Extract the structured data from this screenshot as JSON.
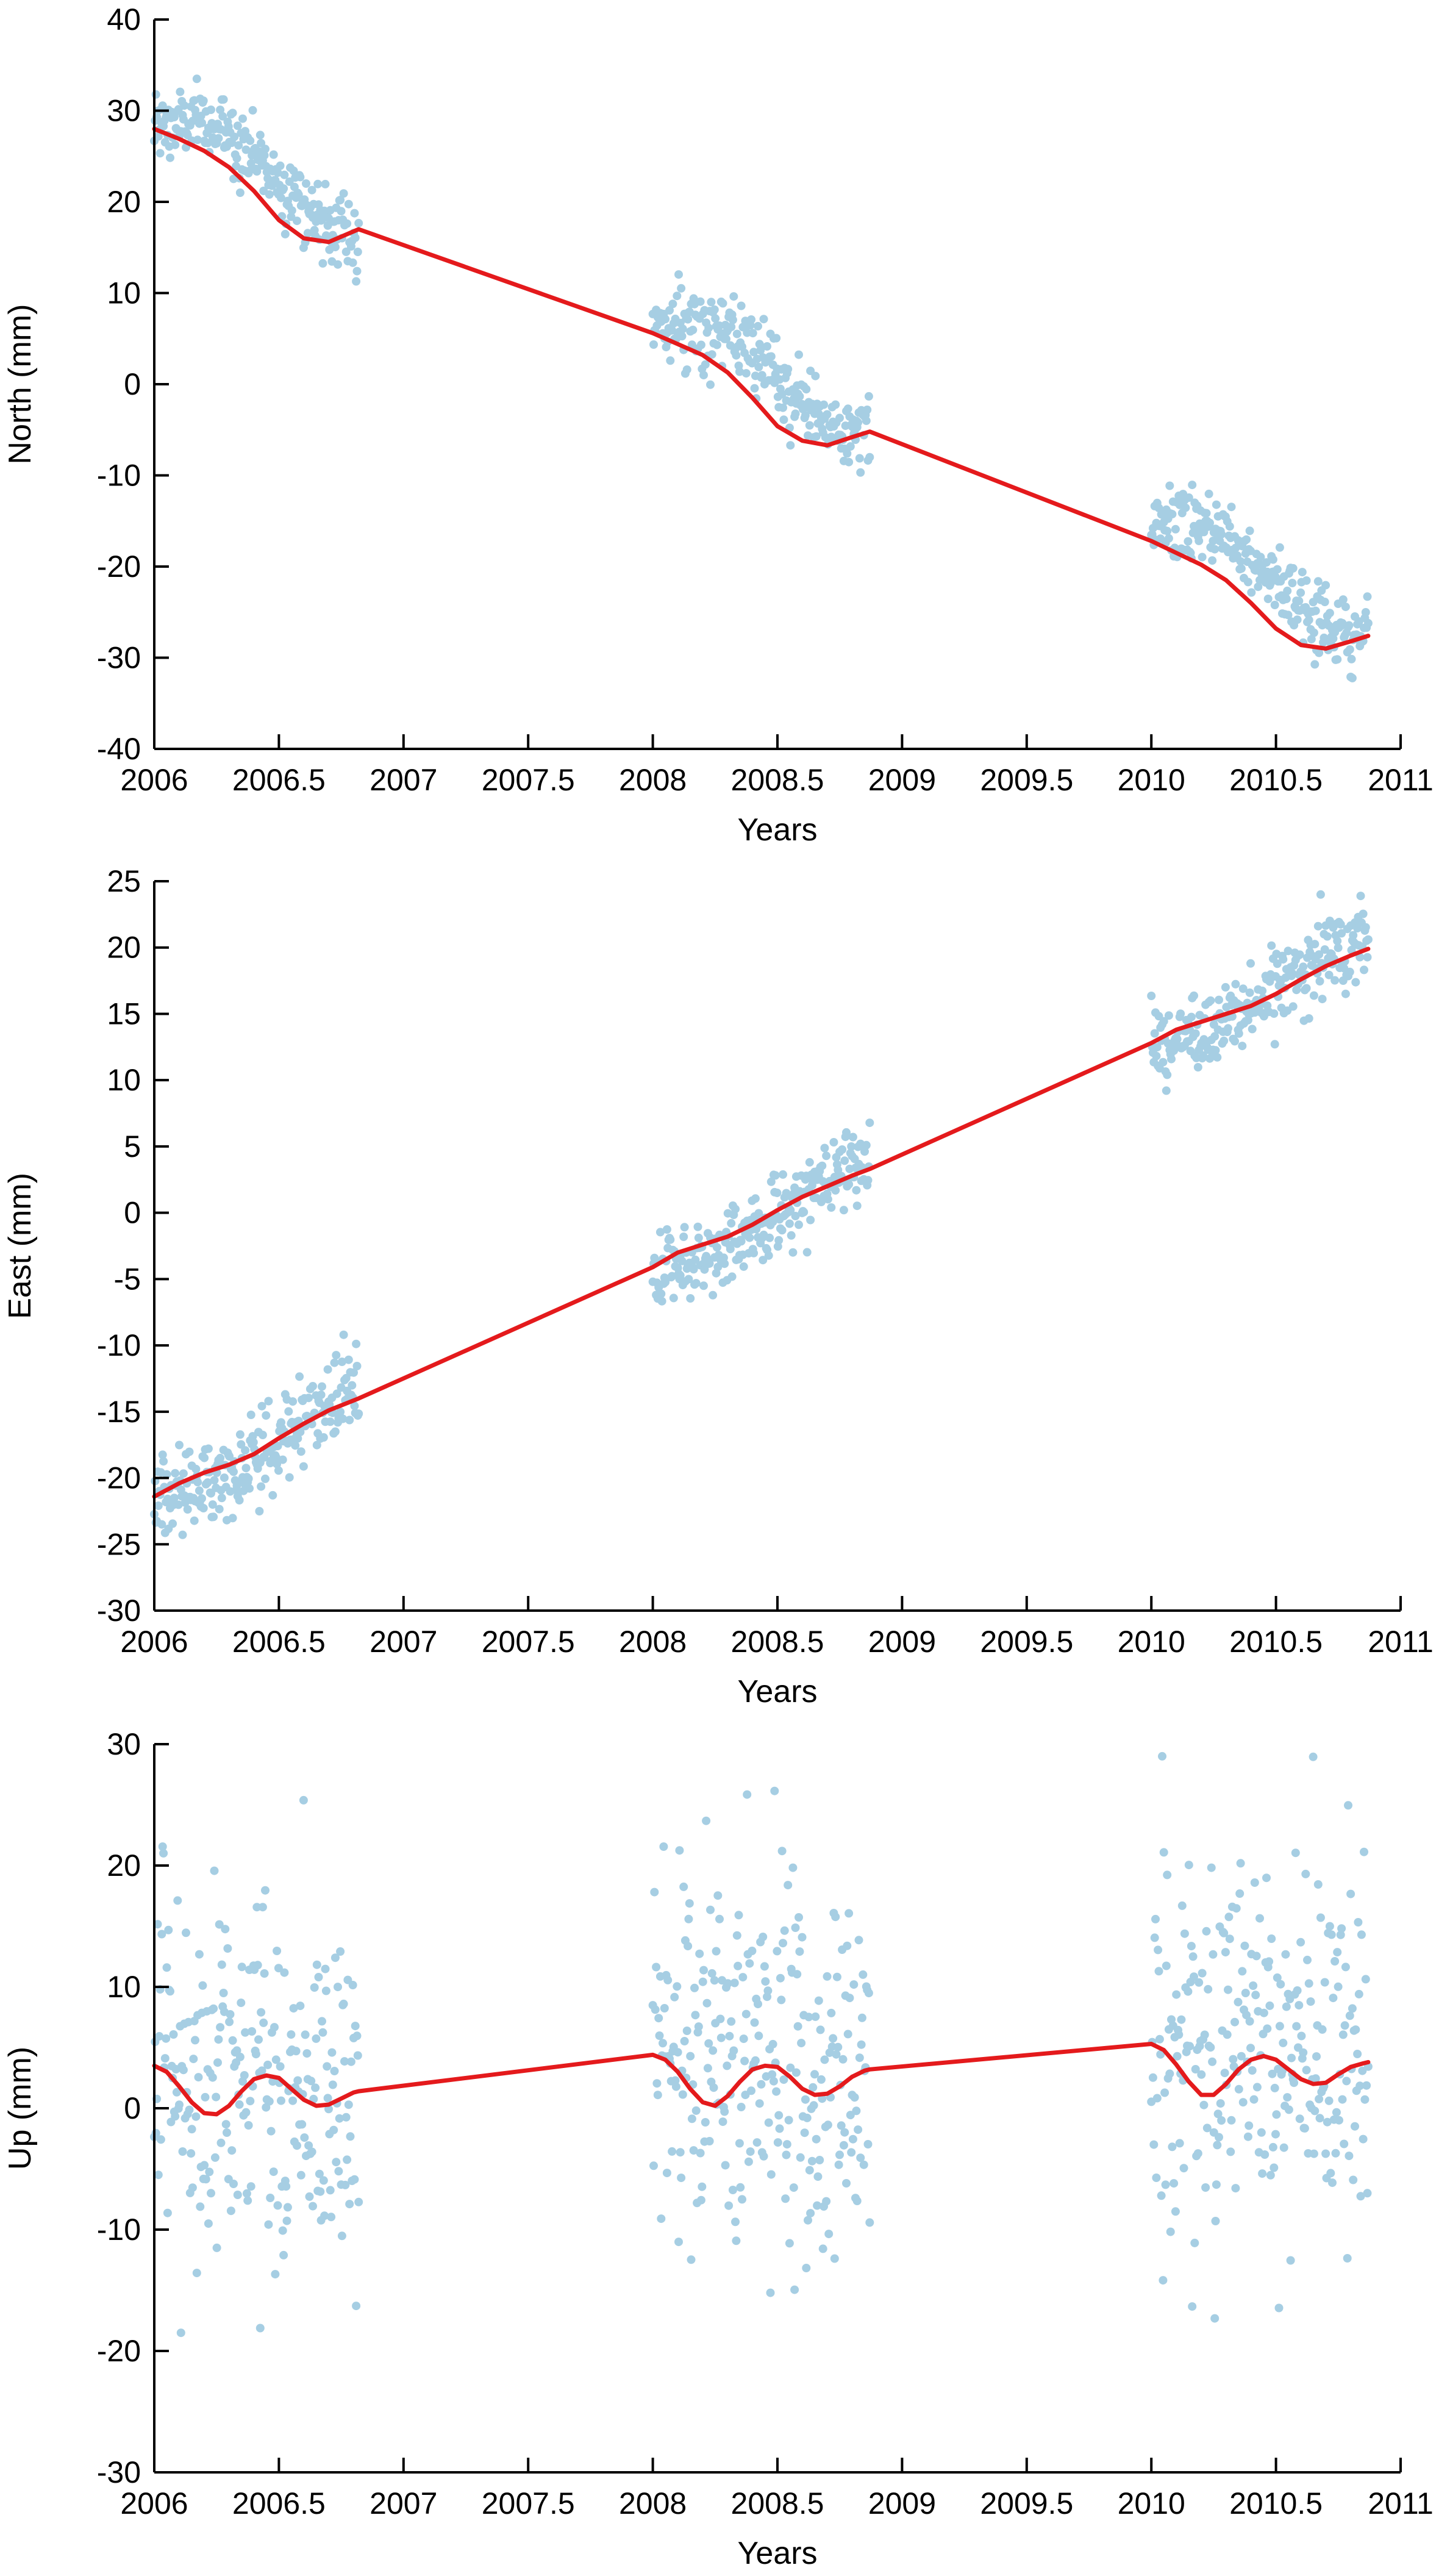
{
  "colors": {
    "points": "#a6cee3",
    "fit": "#e41a1c",
    "axes": "#000000",
    "background": "#ffffff"
  },
  "chart_data": [
    {
      "type": "scatter",
      "xlabel": "Years",
      "ylabel": "North (mm)",
      "xlim": [
        2006,
        2011
      ],
      "ylim": [
        -40,
        40
      ],
      "xticks": [
        2006,
        2006.5,
        2007,
        2007.5,
        2008,
        2008.5,
        2009,
        2009.5,
        2010,
        2010.5,
        2011
      ],
      "xtick_labels": [
        "2006",
        "2006.5",
        "2007",
        "2007.5",
        "2008",
        "2008.5",
        "2009",
        "2009.5",
        "2010",
        "2010.5",
        "2011"
      ],
      "yticks": [
        -40,
        -30,
        -20,
        -10,
        0,
        10,
        20,
        30,
        40
      ],
      "ytick_labels": [
        "-40",
        "-30",
        "-20",
        "-10",
        "0",
        "10",
        "20",
        "30",
        "40"
      ],
      "grid": false,
      "series": [
        {
          "kind": "points",
          "segments": [
            [
              2006.0,
              2006.82
            ],
            [
              2008.0,
              2008.87
            ],
            [
              2010.0,
              2010.87
            ]
          ],
          "trend": {
            "x0": 2006.0,
            "y0": 28.0,
            "slope": -11.0
          },
          "annual_amplitude": 2.8,
          "annual_phase": 0.0,
          "noise_sd": 2.0,
          "points_per_year": 300
        },
        {
          "kind": "line",
          "x": [
            2006.0,
            2006.1,
            2006.2,
            2006.3,
            2006.4,
            2006.5,
            2006.6,
            2006.7,
            2006.82,
            2008.0,
            2008.1,
            2008.2,
            2008.3,
            2008.4,
            2008.5,
            2008.6,
            2008.7,
            2008.8,
            2008.87,
            2010.0,
            2010.1,
            2010.2,
            2010.3,
            2010.4,
            2010.5,
            2010.6,
            2010.7,
            2010.8,
            2010.87
          ],
          "y": [
            28.0,
            26.9,
            25.6,
            23.8,
            21.2,
            18.0,
            16.0,
            15.6,
            17.0,
            5.6,
            4.4,
            3.2,
            1.3,
            -1.5,
            -4.6,
            -6.2,
            -6.7,
            -5.8,
            -5.2,
            -17.2,
            -18.5,
            -19.8,
            -21.5,
            -24.0,
            -26.8,
            -28.6,
            -29.0,
            -28.2,
            -27.6
          ]
        }
      ]
    },
    {
      "type": "scatter",
      "xlabel": "Years",
      "ylabel": "East (mm)",
      "xlim": [
        2006,
        2011
      ],
      "ylim": [
        -30,
        25
      ],
      "xticks": [
        2006,
        2006.5,
        2007,
        2007.5,
        2008,
        2008.5,
        2009,
        2009.5,
        2010,
        2010.5,
        2011
      ],
      "xtick_labels": [
        "2006",
        "2006.5",
        "2007",
        "2007.5",
        "2008",
        "2008.5",
        "2009",
        "2009.5",
        "2010",
        "2010.5",
        "2011"
      ],
      "yticks": [
        -30,
        -25,
        -20,
        -15,
        -10,
        -5,
        0,
        5,
        10,
        15,
        20,
        25
      ],
      "ytick_labels": [
        "-30",
        "-25",
        "-20",
        "-15",
        "-10",
        "-5",
        "0",
        "5",
        "10",
        "15",
        "20",
        "25"
      ],
      "grid": false,
      "series": [
        {
          "kind": "points",
          "segments": [
            [
              2006.0,
              2006.82
            ],
            [
              2008.0,
              2008.87
            ],
            [
              2010.0,
              2010.87
            ]
          ],
          "trend": {
            "x0": 2006.0,
            "y0": -21.3,
            "slope": 8.5
          },
          "annual_amplitude": 0.9,
          "annual_phase": 3.14159,
          "noise_sd": 1.5,
          "points_per_year": 300
        },
        {
          "kind": "line",
          "x": [
            2006.0,
            2006.1,
            2006.2,
            2006.3,
            2006.4,
            2006.5,
            2006.6,
            2006.7,
            2006.82,
            2008.0,
            2008.1,
            2008.2,
            2008.3,
            2008.4,
            2008.5,
            2008.6,
            2008.7,
            2008.8,
            2008.87,
            2010.0,
            2010.1,
            2010.2,
            2010.3,
            2010.4,
            2010.5,
            2010.6,
            2010.7,
            2010.8,
            2010.87
          ],
          "y": [
            -21.4,
            -20.4,
            -19.6,
            -19.0,
            -18.2,
            -17.0,
            -15.9,
            -14.9,
            -14.0,
            -4.1,
            -3.0,
            -2.4,
            -1.8,
            -0.9,
            0.2,
            1.2,
            2.0,
            2.8,
            3.3,
            12.8,
            13.8,
            14.4,
            15.0,
            15.6,
            16.5,
            17.6,
            18.6,
            19.4,
            19.9
          ]
        }
      ]
    },
    {
      "type": "scatter",
      "xlabel": "Years",
      "ylabel": "Up (mm)",
      "xlim": [
        2006,
        2011
      ],
      "ylim": [
        -30,
        30
      ],
      "xticks": [
        2006,
        2006.5,
        2007,
        2007.5,
        2008,
        2008.5,
        2009,
        2009.5,
        2010,
        2010.5,
        2011
      ],
      "xtick_labels": [
        "2006",
        "2006.5",
        "2007",
        "2007.5",
        "2008",
        "2008.5",
        "2009",
        "2009.5",
        "2010",
        "2010.5",
        "2011"
      ],
      "yticks": [
        -30,
        -20,
        -10,
        0,
        10,
        20,
        30
      ],
      "ytick_labels": [
        "-30",
        "-20",
        "-10",
        "0",
        "10",
        "20",
        "30"
      ],
      "grid": false,
      "series": [
        {
          "kind": "points",
          "segments": [
            [
              2006.0,
              2006.82
            ],
            [
              2008.0,
              2008.87
            ],
            [
              2010.0,
              2010.87
            ]
          ],
          "trend": {
            "x0": 2006.0,
            "y0": 2.0,
            "slope": 0.6
          },
          "annual_amplitude": 1.5,
          "annual_phase": 0.0,
          "noise_sd": 8.0,
          "points_per_year": 300
        },
        {
          "kind": "line",
          "x": [
            2006.0,
            2006.05,
            2006.1,
            2006.15,
            2006.2,
            2006.25,
            2006.3,
            2006.35,
            2006.4,
            2006.45,
            2006.5,
            2006.55,
            2006.6,
            2006.65,
            2006.7,
            2006.75,
            2006.8,
            2006.82,
            2008.0,
            2008.05,
            2008.1,
            2008.15,
            2008.2,
            2008.25,
            2008.3,
            2008.35,
            2008.4,
            2008.45,
            2008.5,
            2008.55,
            2008.6,
            2008.65,
            2008.7,
            2008.75,
            2008.8,
            2008.85,
            2008.87,
            2010.0,
            2010.05,
            2010.1,
            2010.15,
            2010.2,
            2010.25,
            2010.3,
            2010.35,
            2010.4,
            2010.45,
            2010.5,
            2010.55,
            2010.6,
            2010.65,
            2010.7,
            2010.75,
            2010.8,
            2010.85,
            2010.87
          ],
          "y": [
            3.5,
            3.0,
            1.8,
            0.5,
            -0.4,
            -0.5,
            0.2,
            1.4,
            2.4,
            2.7,
            2.5,
            1.6,
            0.7,
            0.2,
            0.3,
            0.8,
            1.3,
            1.4,
            4.4,
            4.0,
            3.0,
            1.6,
            0.5,
            0.2,
            1.0,
            2.2,
            3.2,
            3.5,
            3.4,
            2.6,
            1.6,
            1.1,
            1.2,
            1.8,
            2.6,
            3.1,
            3.2,
            5.3,
            4.8,
            3.6,
            2.2,
            1.1,
            1.1,
            2.0,
            3.2,
            4.0,
            4.3,
            4.0,
            3.2,
            2.4,
            2.0,
            2.1,
            2.8,
            3.4,
            3.7,
            3.8
          ]
        }
      ]
    }
  ]
}
